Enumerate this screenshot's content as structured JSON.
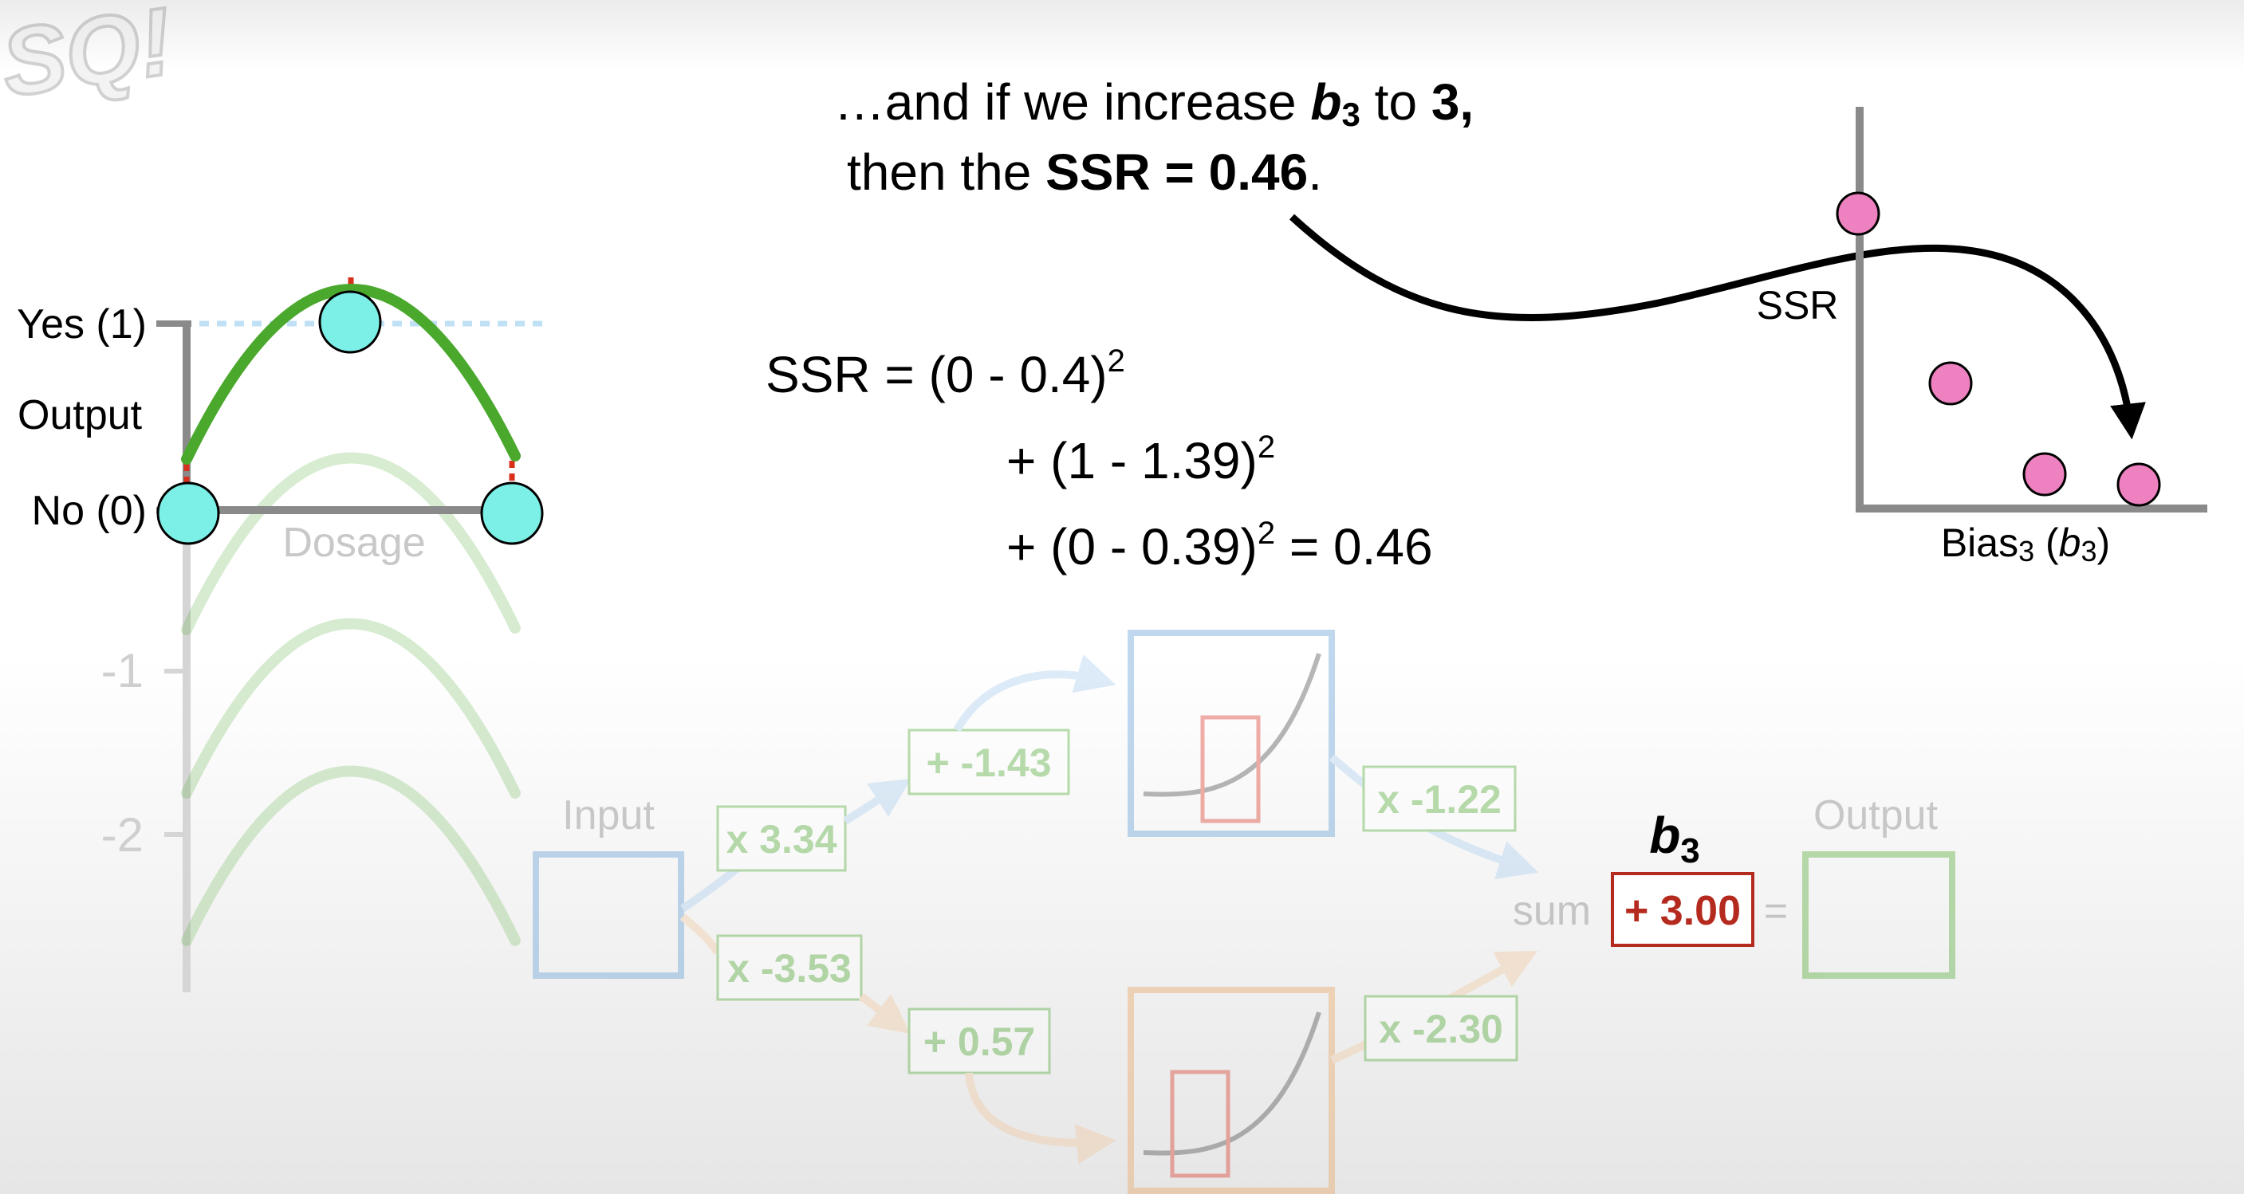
{
  "logo": {
    "text": "SQ!"
  },
  "caption": {
    "line1_prefix": "…and if we increase ",
    "line1_var": "b",
    "line1_sub": "3",
    "line1_mid": " to ",
    "line1_val": "3",
    "line1_suffix": ",",
    "line2_prefix": "then the ",
    "line2_bold": "SSR = 0.46",
    "line2_suffix": "."
  },
  "equation": {
    "line1": "SSR = (0 - 0.4)",
    "line2": "+ (1 - 1.39)",
    "line3": "+ (0 - 0.39)",
    "line3_result": " = 0.46",
    "exponent": "2"
  },
  "output_plot": {
    "yes_label": "Yes (1)",
    "output_label": "Output",
    "no_label": "No (0)",
    "x_label": "Dosage",
    "tick_neg1": "-1",
    "tick_neg2": "-2"
  },
  "ssr_plot": {
    "y_label": "SSR",
    "x_label_text": "Bias",
    "x_label_sub": "3",
    "x_label_paren_open": " (",
    "x_label_var": "b",
    "x_label_var_sub": "3",
    "x_label_paren_close": ")",
    "point_color": "#ee82c0"
  },
  "network": {
    "input_label": "Input",
    "output_label": "Output",
    "w1": "x 3.34",
    "w2": "x -3.53",
    "b1": "+ -1.43",
    "b2": "+ 0.57",
    "w3": "x -1.22",
    "w4": "x -2.30",
    "sum_label": "sum",
    "b3_var": "b",
    "b3_sub": "3",
    "b3_value": "+ 3.00",
    "equals": "="
  },
  "colors": {
    "green": "#4aa82c",
    "cyan_point": "#7cefe6",
    "pink_point": "#ee82c0",
    "red_box": "#b52a1e",
    "blue": "#5b9bd5",
    "orange": "#e8a15a"
  }
}
